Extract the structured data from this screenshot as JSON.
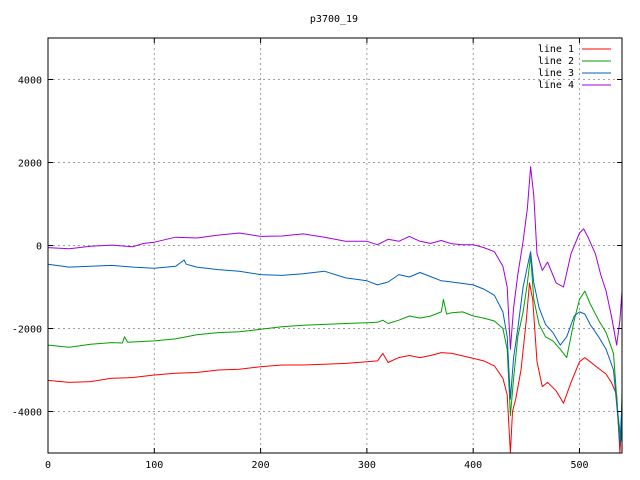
{
  "chart_data": {
    "type": "line",
    "title": "p3700_19",
    "xlabel": "",
    "ylabel": "",
    "xlim": [
      0,
      540
    ],
    "ylim": [
      -5000,
      5000
    ],
    "x_ticks": [
      0,
      100,
      200,
      300,
      400,
      500
    ],
    "y_ticks": [
      -4000,
      -2000,
      0,
      2000,
      4000
    ],
    "grid": true,
    "legend_position": "top-right",
    "series": [
      {
        "name": "line 1",
        "color": "#ff0000",
        "points": [
          [
            0,
            -3250
          ],
          [
            20,
            -3300
          ],
          [
            40,
            -3280
          ],
          [
            60,
            -3200
          ],
          [
            80,
            -3180
          ],
          [
            100,
            -3120
          ],
          [
            120,
            -3080
          ],
          [
            140,
            -3060
          ],
          [
            160,
            -3000
          ],
          [
            180,
            -2980
          ],
          [
            200,
            -2920
          ],
          [
            220,
            -2880
          ],
          [
            240,
            -2880
          ],
          [
            260,
            -2860
          ],
          [
            280,
            -2840
          ],
          [
            300,
            -2800
          ],
          [
            310,
            -2780
          ],
          [
            315,
            -2600
          ],
          [
            320,
            -2820
          ],
          [
            330,
            -2700
          ],
          [
            340,
            -2650
          ],
          [
            350,
            -2700
          ],
          [
            360,
            -2650
          ],
          [
            370,
            -2580
          ],
          [
            380,
            -2600
          ],
          [
            390,
            -2660
          ],
          [
            400,
            -2720
          ],
          [
            410,
            -2780
          ],
          [
            420,
            -2900
          ],
          [
            428,
            -3200
          ],
          [
            432,
            -3600
          ],
          [
            435,
            -5000
          ],
          [
            437,
            -4000
          ],
          [
            440,
            -3700
          ],
          [
            445,
            -3000
          ],
          [
            450,
            -1800
          ],
          [
            453,
            -900
          ],
          [
            456,
            -1300
          ],
          [
            460,
            -2800
          ],
          [
            465,
            -3400
          ],
          [
            470,
            -3300
          ],
          [
            478,
            -3500
          ],
          [
            485,
            -3800
          ],
          [
            492,
            -3300
          ],
          [
            500,
            -2800
          ],
          [
            505,
            -2700
          ],
          [
            510,
            -2800
          ],
          [
            515,
            -2900
          ],
          [
            520,
            -3000
          ],
          [
            525,
            -3100
          ],
          [
            530,
            -3300
          ],
          [
            535,
            -3600
          ],
          [
            538,
            -5000
          ],
          [
            540,
            -4200
          ]
        ]
      },
      {
        "name": "line 2",
        "color": "#00a000",
        "points": [
          [
            0,
            -2400
          ],
          [
            20,
            -2450
          ],
          [
            40,
            -2380
          ],
          [
            60,
            -2340
          ],
          [
            70,
            -2350
          ],
          [
            72,
            -2200
          ],
          [
            75,
            -2330
          ],
          [
            100,
            -2300
          ],
          [
            120,
            -2250
          ],
          [
            140,
            -2150
          ],
          [
            160,
            -2100
          ],
          [
            180,
            -2080
          ],
          [
            200,
            -2020
          ],
          [
            220,
            -1960
          ],
          [
            240,
            -1920
          ],
          [
            260,
            -1900
          ],
          [
            280,
            -1880
          ],
          [
            300,
            -1860
          ],
          [
            310,
            -1850
          ],
          [
            315,
            -1800
          ],
          [
            320,
            -1880
          ],
          [
            330,
            -1800
          ],
          [
            340,
            -1700
          ],
          [
            350,
            -1750
          ],
          [
            360,
            -1700
          ],
          [
            370,
            -1600
          ],
          [
            372,
            -1300
          ],
          [
            375,
            -1650
          ],
          [
            380,
            -1620
          ],
          [
            390,
            -1600
          ],
          [
            400,
            -1700
          ],
          [
            410,
            -1750
          ],
          [
            420,
            -1820
          ],
          [
            428,
            -2000
          ],
          [
            432,
            -2500
          ],
          [
            435,
            -4100
          ],
          [
            438,
            -3200
          ],
          [
            442,
            -2200
          ],
          [
            447,
            -1600
          ],
          [
            451,
            -900
          ],
          [
            454,
            -250
          ],
          [
            457,
            -1300
          ],
          [
            462,
            -1900
          ],
          [
            468,
            -2200
          ],
          [
            475,
            -2300
          ],
          [
            482,
            -2500
          ],
          [
            488,
            -2700
          ],
          [
            495,
            -1800
          ],
          [
            500,
            -1300
          ],
          [
            505,
            -1100
          ],
          [
            510,
            -1400
          ],
          [
            518,
            -1800
          ],
          [
            525,
            -2100
          ],
          [
            532,
            -2600
          ],
          [
            536,
            -4000
          ],
          [
            539,
            -4700
          ],
          [
            540,
            -3500
          ]
        ]
      },
      {
        "name": "line 3",
        "color": "#0060c0",
        "points": [
          [
            0,
            -450
          ],
          [
            20,
            -520
          ],
          [
            40,
            -500
          ],
          [
            60,
            -480
          ],
          [
            80,
            -520
          ],
          [
            100,
            -550
          ],
          [
            120,
            -500
          ],
          [
            128,
            -350
          ],
          [
            130,
            -450
          ],
          [
            140,
            -520
          ],
          [
            160,
            -580
          ],
          [
            180,
            -620
          ],
          [
            200,
            -700
          ],
          [
            220,
            -720
          ],
          [
            240,
            -680
          ],
          [
            260,
            -620
          ],
          [
            280,
            -780
          ],
          [
            300,
            -850
          ],
          [
            310,
            -950
          ],
          [
            320,
            -880
          ],
          [
            330,
            -700
          ],
          [
            340,
            -760
          ],
          [
            350,
            -650
          ],
          [
            360,
            -750
          ],
          [
            370,
            -850
          ],
          [
            380,
            -880
          ],
          [
            400,
            -950
          ],
          [
            410,
            -1050
          ],
          [
            420,
            -1200
          ],
          [
            428,
            -1600
          ],
          [
            432,
            -2200
          ],
          [
            435,
            -3700
          ],
          [
            438,
            -2700
          ],
          [
            442,
            -2000
          ],
          [
            447,
            -1000
          ],
          [
            451,
            -500
          ],
          [
            454,
            -150
          ],
          [
            457,
            -900
          ],
          [
            462,
            -1500
          ],
          [
            468,
            -1900
          ],
          [
            475,
            -2100
          ],
          [
            482,
            -2400
          ],
          [
            488,
            -2200
          ],
          [
            495,
            -1700
          ],
          [
            500,
            -1600
          ],
          [
            505,
            -1650
          ],
          [
            510,
            -1900
          ],
          [
            518,
            -2200
          ],
          [
            525,
            -2500
          ],
          [
            532,
            -3000
          ],
          [
            536,
            -4100
          ],
          [
            538,
            -4800
          ],
          [
            540,
            -3800
          ]
        ]
      },
      {
        "name": "line 4",
        "color": "#a000e0",
        "points": [
          [
            0,
            -50
          ],
          [
            20,
            -80
          ],
          [
            40,
            -20
          ],
          [
            60,
            10
          ],
          [
            80,
            -30
          ],
          [
            90,
            50
          ],
          [
            100,
            80
          ],
          [
            120,
            200
          ],
          [
            140,
            180
          ],
          [
            160,
            250
          ],
          [
            180,
            300
          ],
          [
            200,
            220
          ],
          [
            220,
            230
          ],
          [
            240,
            280
          ],
          [
            260,
            200
          ],
          [
            280,
            100
          ],
          [
            300,
            100
          ],
          [
            310,
            20
          ],
          [
            320,
            150
          ],
          [
            330,
            100
          ],
          [
            340,
            220
          ],
          [
            350,
            100
          ],
          [
            360,
            50
          ],
          [
            370,
            120
          ],
          [
            380,
            40
          ],
          [
            390,
            20
          ],
          [
            400,
            20
          ],
          [
            410,
            -50
          ],
          [
            420,
            -150
          ],
          [
            428,
            -500
          ],
          [
            432,
            -1000
          ],
          [
            435,
            -2500
          ],
          [
            438,
            -1500
          ],
          [
            442,
            -700
          ],
          [
            447,
            100
          ],
          [
            451,
            900
          ],
          [
            454,
            1900
          ],
          [
            457,
            1200
          ],
          [
            460,
            -200
          ],
          [
            465,
            -600
          ],
          [
            470,
            -400
          ],
          [
            478,
            -900
          ],
          [
            485,
            -1000
          ],
          [
            492,
            -200
          ],
          [
            500,
            300
          ],
          [
            504,
            400
          ],
          [
            508,
            200
          ],
          [
            515,
            -200
          ],
          [
            520,
            -700
          ],
          [
            525,
            -1100
          ],
          [
            530,
            -1700
          ],
          [
            535,
            -2400
          ],
          [
            538,
            -1800
          ],
          [
            540,
            -1100
          ]
        ]
      }
    ]
  }
}
